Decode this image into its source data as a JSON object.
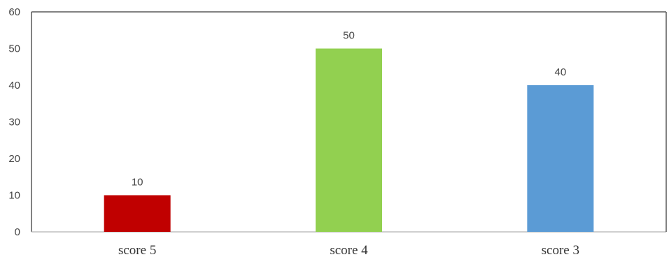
{
  "chart_data": {
    "type": "bar",
    "title": "",
    "xlabel": "",
    "ylabel": "",
    "categories": [
      "score 5",
      "score 4",
      "score 3"
    ],
    "values": [
      10,
      50,
      40
    ],
    "data_labels": [
      "10",
      "50",
      "40"
    ],
    "colors": [
      "#c00000",
      "#92d050",
      "#5b9bd5"
    ],
    "ylim": [
      0,
      60
    ],
    "yticks": [
      0,
      10,
      20,
      30,
      40,
      50,
      60
    ],
    "ytick_labels": [
      "0",
      "10",
      "20",
      "30",
      "40",
      "50",
      "60"
    ],
    "grid": false,
    "legend": "none"
  }
}
